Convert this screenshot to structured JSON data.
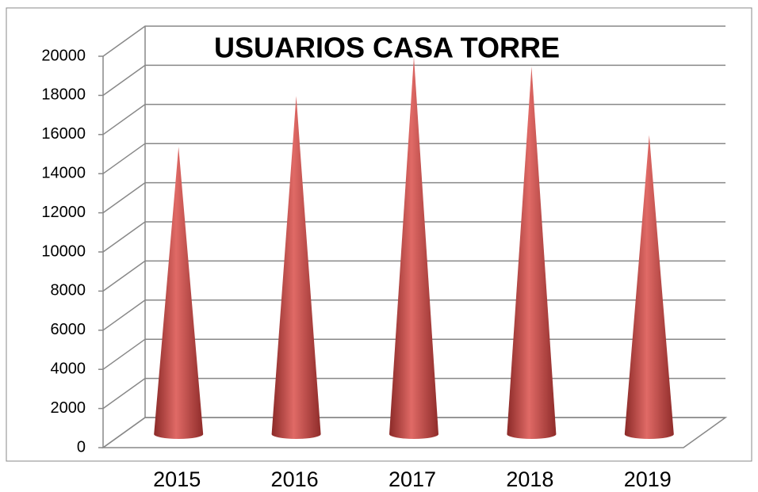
{
  "chart_data": {
    "type": "cone",
    "title": "USUARIOS CASA TORRE",
    "categories": [
      "2015",
      "2016",
      "2017",
      "2018",
      "2019"
    ],
    "values": [
      14600,
      17200,
      19200,
      18700,
      15200
    ],
    "color": "#c0504d",
    "ylim": [
      0,
      20000
    ],
    "yticks": [
      0,
      2000,
      4000,
      6000,
      8000,
      10000,
      12000,
      14000,
      16000,
      18000,
      20000
    ],
    "grid": true
  }
}
